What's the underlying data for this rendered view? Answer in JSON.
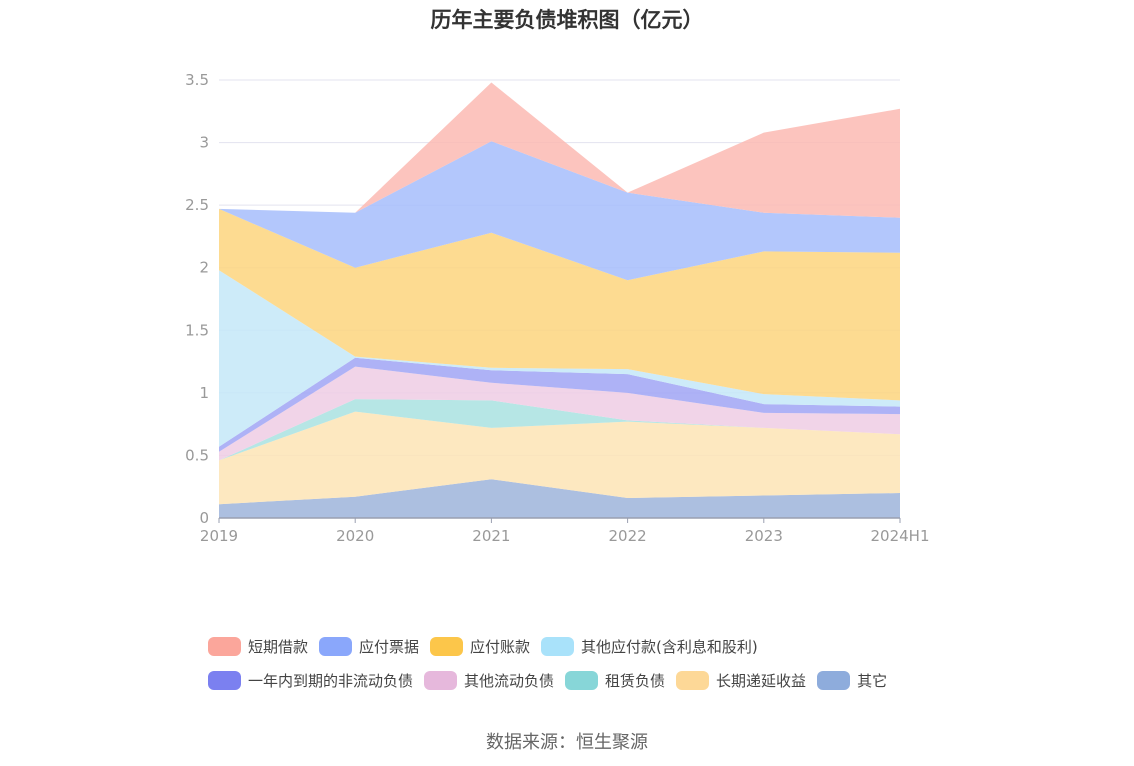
{
  "chart_data": {
    "type": "area",
    "stacked": true,
    "title": "历年主要负债堆积图（亿元）",
    "categories": [
      "2019",
      "2020",
      "2021",
      "2022",
      "2023",
      "2024H1"
    ],
    "ylim": [
      0,
      3.5
    ],
    "yticks": [
      "0",
      "0.5",
      "1",
      "1.5",
      "2",
      "2.5",
      "3",
      "3.5"
    ],
    "grid": true,
    "legend_position": "bottom",
    "series": [
      {
        "name": "其它",
        "color": "#9db4da",
        "legend_color": "#8eacdc",
        "values": [
          0.11,
          0.17,
          0.31,
          0.16,
          0.18,
          0.2
        ]
      },
      {
        "name": "长期递延收益",
        "color": "#fde4b5",
        "legend_color": "#fdd897",
        "values": [
          0.35,
          0.68,
          0.41,
          0.61,
          0.54,
          0.47
        ]
      },
      {
        "name": "租赁负债",
        "color": "#a9e2e0",
        "legend_color": "#87d6d8",
        "values": [
          0.0,
          0.1,
          0.22,
          0.01,
          0.0,
          0.0
        ]
      },
      {
        "name": "其他流动负债",
        "color": "#eecde4",
        "legend_color": "#e6b8dc",
        "values": [
          0.07,
          0.26,
          0.14,
          0.22,
          0.12,
          0.16
        ]
      },
      {
        "name": "一年内到期的非流动负债",
        "color": "#a0a4f4",
        "legend_color": "#7b80f0",
        "values": [
          0.04,
          0.07,
          0.1,
          0.15,
          0.07,
          0.06
        ]
      },
      {
        "name": "其他应付款(含利息和股利)",
        "color": "#c4e7f8",
        "legend_color": "#a9e2fa",
        "values": [
          1.41,
          0.01,
          0.02,
          0.04,
          0.08,
          0.05
        ]
      },
      {
        "name": "应付账款",
        "color": "#fdd57e",
        "legend_color": "#fcc64a",
        "values": [
          0.49,
          0.71,
          1.08,
          0.71,
          1.14,
          1.18
        ]
      },
      {
        "name": "应付票据",
        "color": "#a6bdfc",
        "legend_color": "#8aa7fb",
        "values": [
          0.0,
          0.44,
          0.73,
          0.7,
          0.31,
          0.28
        ]
      },
      {
        "name": "短期借款",
        "color": "#fbbab3",
        "legend_color": "#fba69b",
        "values": [
          0.0,
          0.0,
          0.47,
          0.0,
          0.64,
          0.87
        ]
      }
    ]
  },
  "legend_order": [
    "短期借款",
    "应付票据",
    "应付账款",
    "其他应付款(含利息和股利)",
    "一年内到期的非流动负债",
    "其他流动负债",
    "租赁负债",
    "长期递延收益",
    "其它"
  ],
  "source": "数据来源：恒生聚源"
}
